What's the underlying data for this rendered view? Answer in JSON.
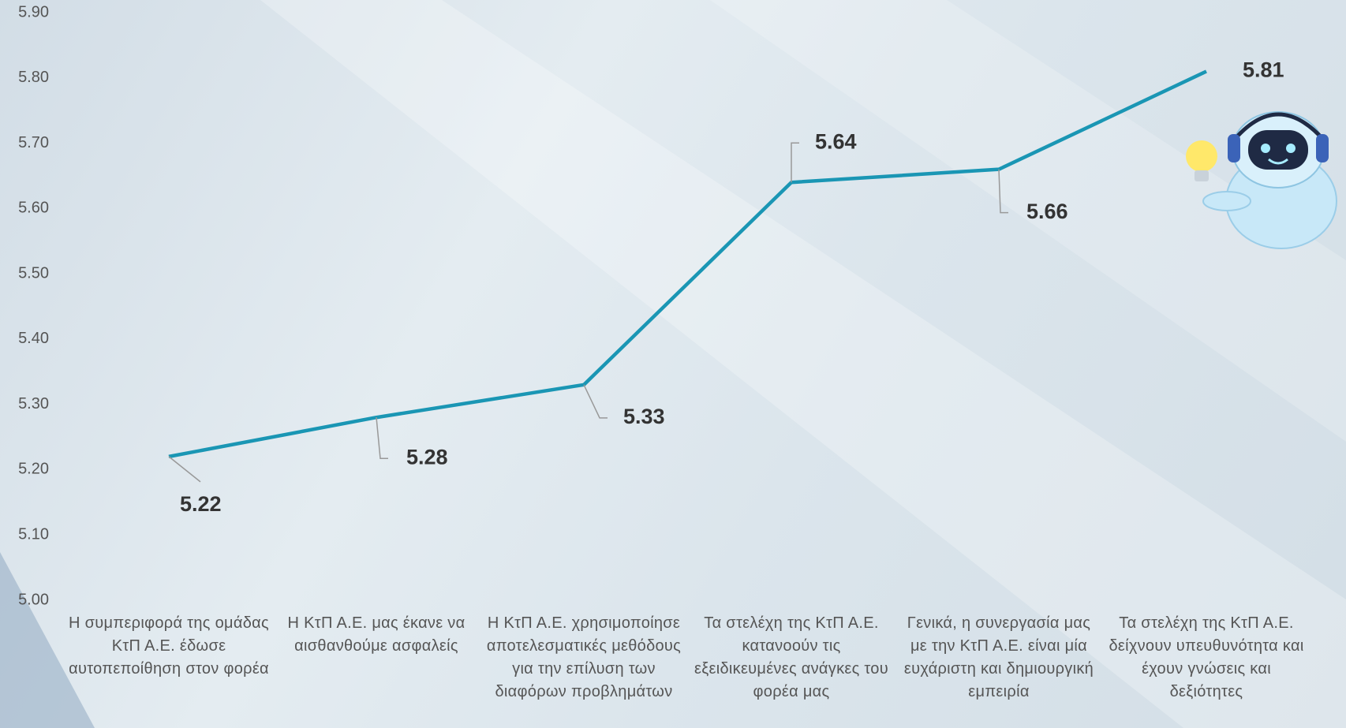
{
  "chart_data": {
    "type": "line",
    "categories": [
      "Η συμπεριφορά της ομάδας ΚτΠ Α.Ε. έδωσε αυτοπεποίθηση στον φορέα",
      "Η ΚτΠ Α.Ε. μας έκανε να αισθανθούμε ασφαλείς",
      "Η ΚτΠ Α.Ε. χρησιμοποίησε αποτελεσματικές μεθόδους για την επίλυση των διαφόρων προβλημάτων",
      "Τα στελέχη της ΚτΠ Α.Ε. κατανοούν τις εξειδικευμένες ανάγκες του φορέα μας",
      "Γενικά, η συνεργασία μας με την ΚτΠ Α.Ε. είναι μία ευχάριστη και δημιουργική εμπειρία",
      "Τα στελέχη της ΚτΠ Α.Ε. δείχνουν υπευθυνότητα και έχουν γνώσεις και δεξιότητες"
    ],
    "values": [
      5.22,
      5.28,
      5.33,
      5.64,
      5.66,
      5.81
    ],
    "value_labels": [
      "5.22",
      "5.28",
      "5.33",
      "5.64",
      "5.66",
      "5.81"
    ],
    "color": "#1a96b4",
    "ylim": [
      5.0,
      5.9
    ],
    "yticks": [
      {
        "value": 5.0,
        "label": "5.00"
      },
      {
        "value": 5.1,
        "label": "5.10"
      },
      {
        "value": 5.2,
        "label": "5.20"
      },
      {
        "value": 5.3,
        "label": "5.30"
      },
      {
        "value": 5.4,
        "label": "5.40"
      },
      {
        "value": 5.5,
        "label": "5.50"
      },
      {
        "value": 5.6,
        "label": "5.60"
      },
      {
        "value": 5.7,
        "label": "5.70"
      },
      {
        "value": 5.8,
        "label": "5.80"
      },
      {
        "value": 5.9,
        "label": "5.90"
      }
    ],
    "grid": false
  }
}
